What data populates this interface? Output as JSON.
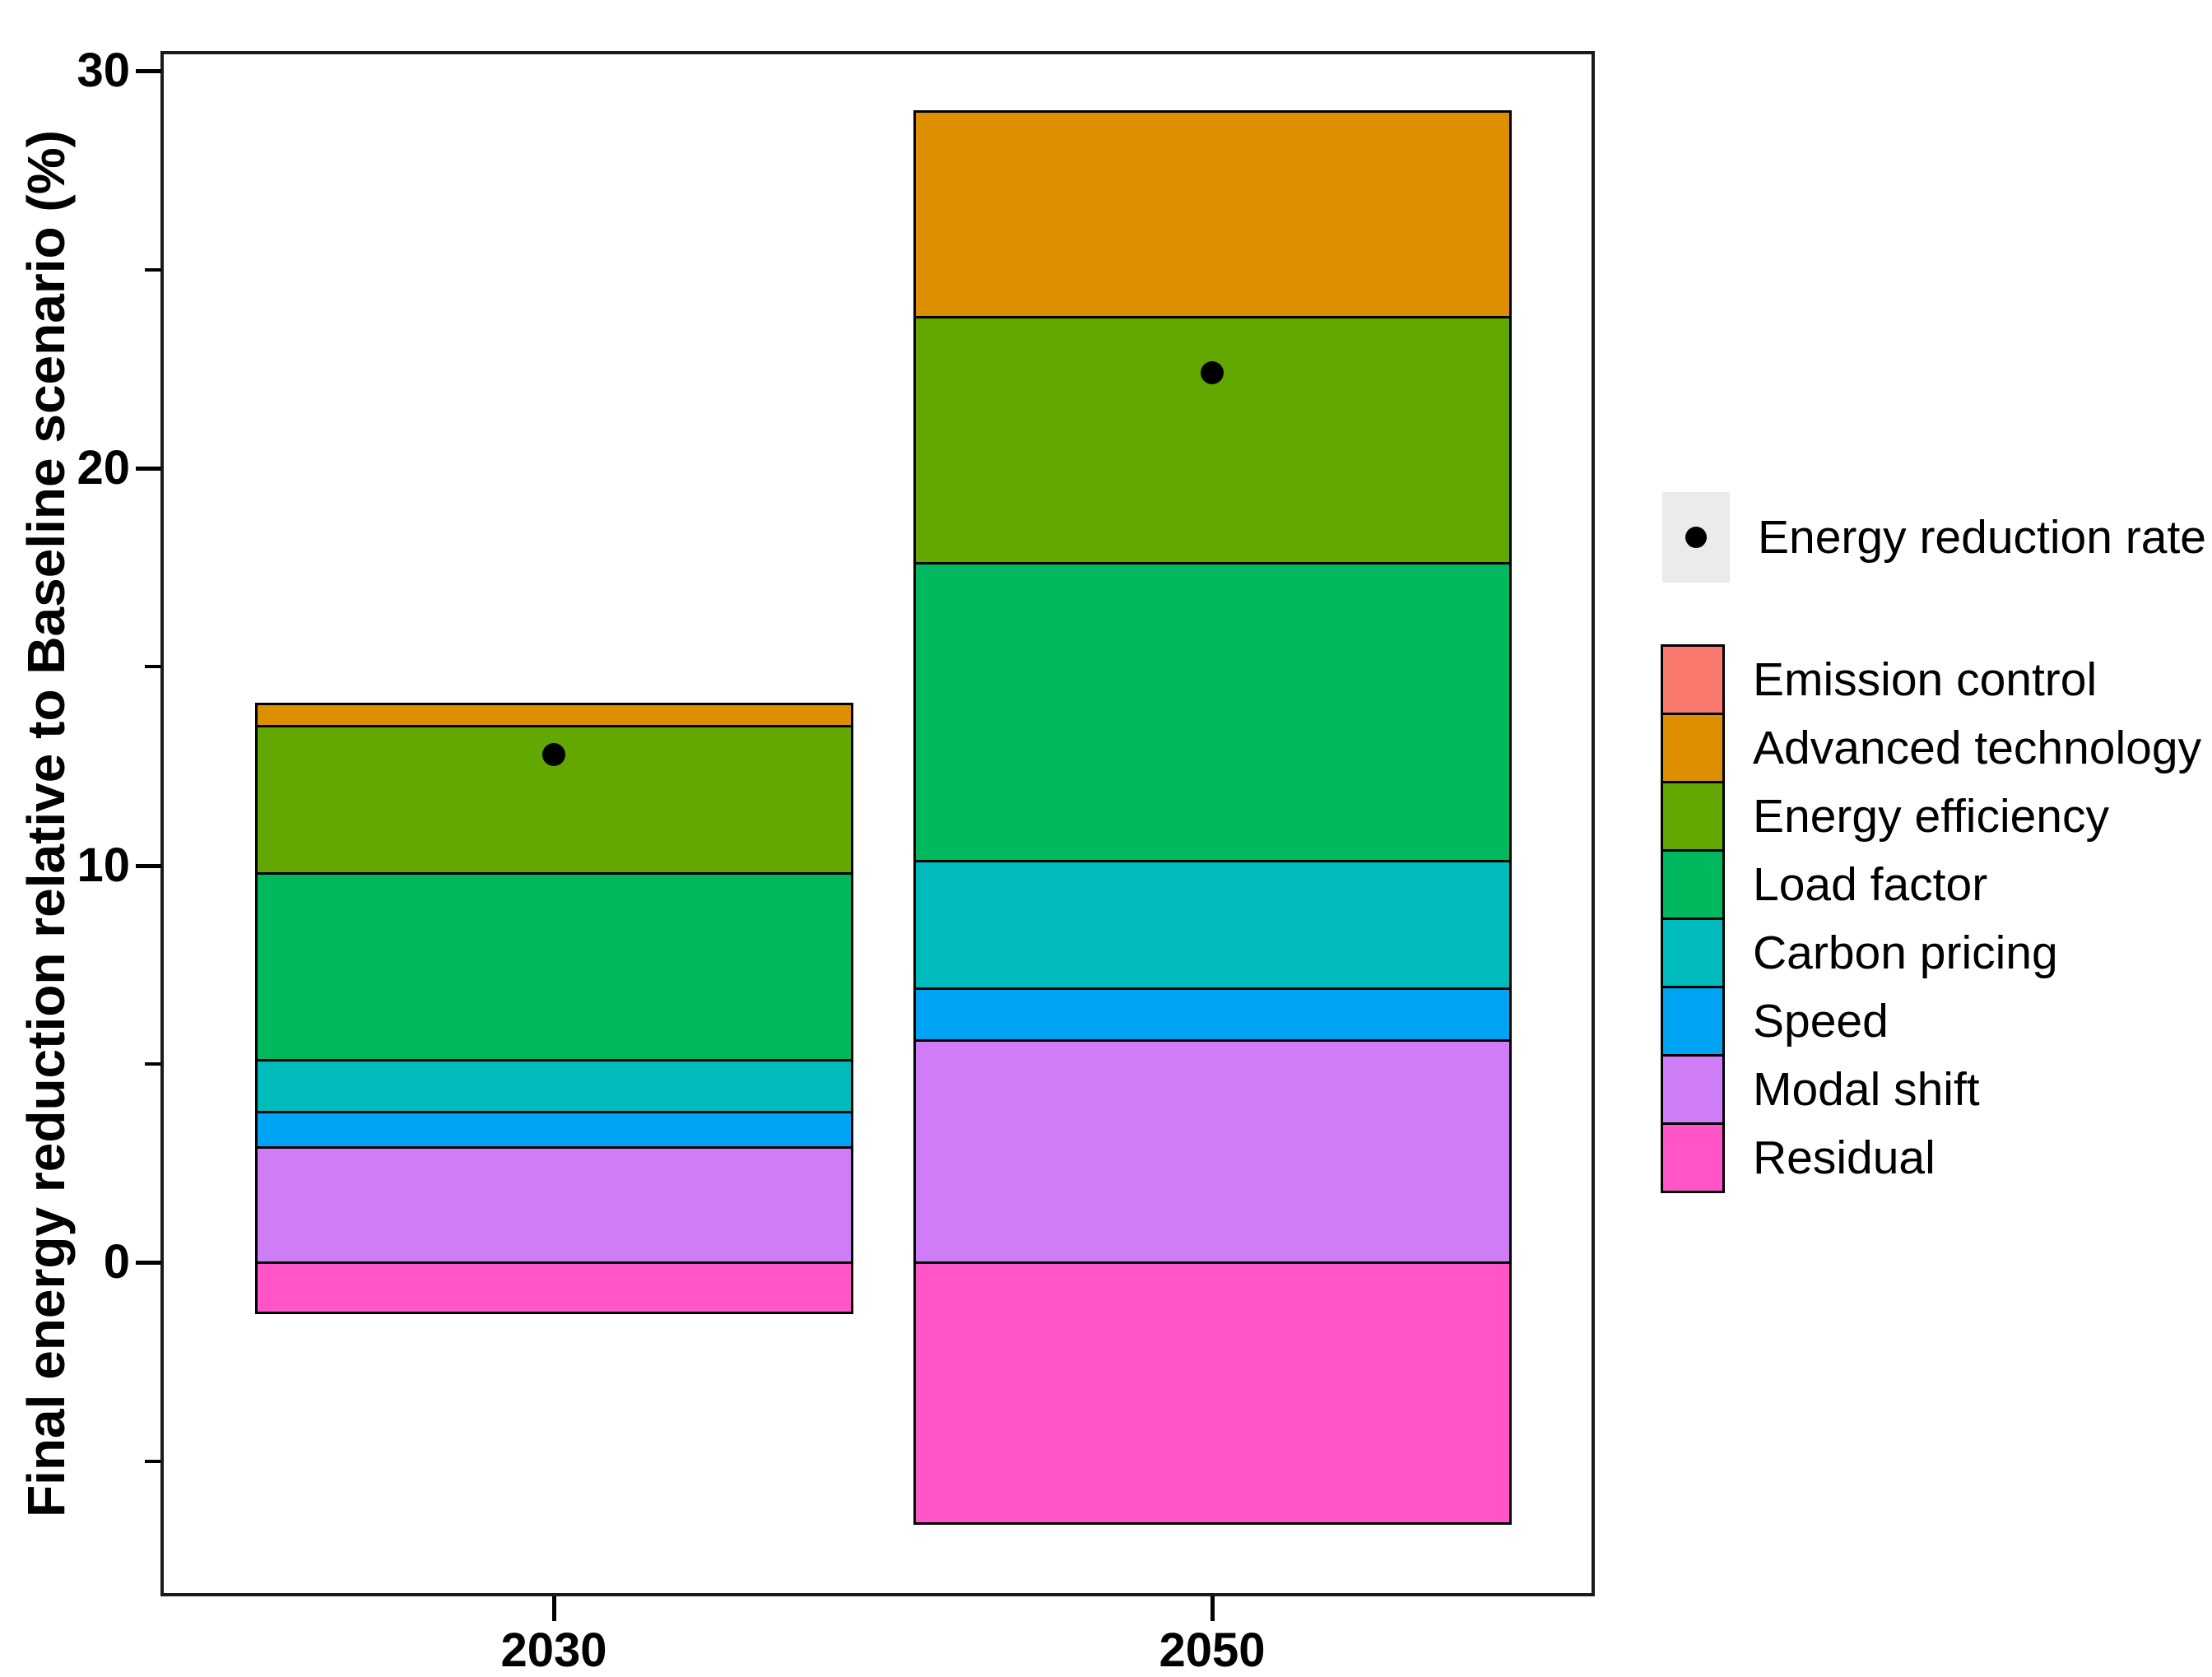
{
  "figure": {
    "background": "#FFFFFF",
    "axis_color": "#000000"
  },
  "chart_data": {
    "type": "bar",
    "stacked": true,
    "title": "",
    "xlabel": "",
    "ylabel": "Final energy reduction relative to Baseline scenario (%)",
    "categories": [
      "2030",
      "2050"
    ],
    "ylim": [
      -8.4,
      30.5
    ],
    "yticks_major": [
      0,
      10,
      20,
      30
    ],
    "yticks_minor": [
      -5,
      5,
      15,
      25
    ],
    "grid": "off",
    "legend_position": "right",
    "series": [
      {
        "name": "Emission control",
        "color": "#F8786E",
        "values": [
          0.0,
          0.0
        ]
      },
      {
        "name": "Advanced technology",
        "color": "#DE8F00",
        "values": [
          0.6,
          5.2
        ]
      },
      {
        "name": "Energy efficiency",
        "color": "#63A800",
        "values": [
          3.7,
          6.2
        ]
      },
      {
        "name": "Load factor",
        "color": "#00B95E",
        "values": [
          4.7,
          7.5
        ]
      },
      {
        "name": "Carbon pricing",
        "color": "#00BBBC",
        "values": [
          1.3,
          3.2
        ]
      },
      {
        "name": "Speed",
        "color": "#00A4F5",
        "values": [
          0.9,
          1.3
        ]
      },
      {
        "name": "Modal shift",
        "color": "#CF7DF7",
        "values": [
          2.9,
          5.6
        ]
      },
      {
        "name": "Residual",
        "color": "#FF55C6",
        "values": [
          -1.3,
          -6.6
        ]
      }
    ],
    "points": {
      "name": "Energy reduction rate",
      "values": [
        12.8,
        22.4
      ],
      "color": "#000000",
      "key_background": "#EBEBEB"
    }
  }
}
